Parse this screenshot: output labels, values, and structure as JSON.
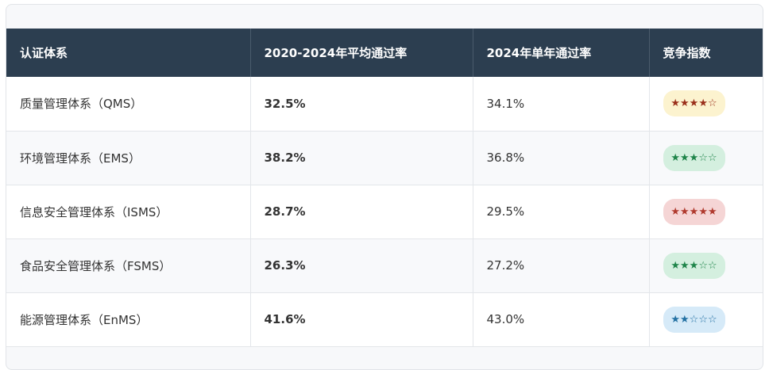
{
  "table": {
    "headers": [
      "认证体系",
      "2020-2024年平均通过率",
      "2024年单年通过率",
      "竞争指数"
    ],
    "rows": [
      {
        "system": "质量管理体系（QMS）",
        "avg_rate": "32.5%",
        "avg_color": "#c0392b",
        "rate_2024": "34.1%",
        "competition": "★★★★☆",
        "badge_color": "yellow"
      },
      {
        "system": "环境管理体系（EMS）",
        "avg_rate": "38.2%",
        "avg_color": "#27ae60",
        "rate_2024": "36.8%",
        "competition": "★★★☆☆",
        "badge_color": "green"
      },
      {
        "system": "信息安全管理体系（ISMS）",
        "avg_rate": "28.7%",
        "avg_color": "#c0392b",
        "rate_2024": "29.5%",
        "competition": "★★★★★",
        "badge_color": "red"
      },
      {
        "system": "食品安全管理体系（FSMS）",
        "avg_rate": "26.3%",
        "avg_color": "#27ae60",
        "rate_2024": "27.2%",
        "competition": "★★★☆☆",
        "badge_color": "green"
      },
      {
        "system": "能源管理体系（EnMS）",
        "avg_rate": "41.6%",
        "avg_color": "#27ae60",
        "rate_2024": "43.0%",
        "competition": "★★☆☆☆",
        "badge_color": "blue"
      }
    ]
  },
  "colors": {
    "header_bg": "#2c3e50",
    "rate_red": "#c0392b",
    "rate_green": "#27ae60"
  }
}
